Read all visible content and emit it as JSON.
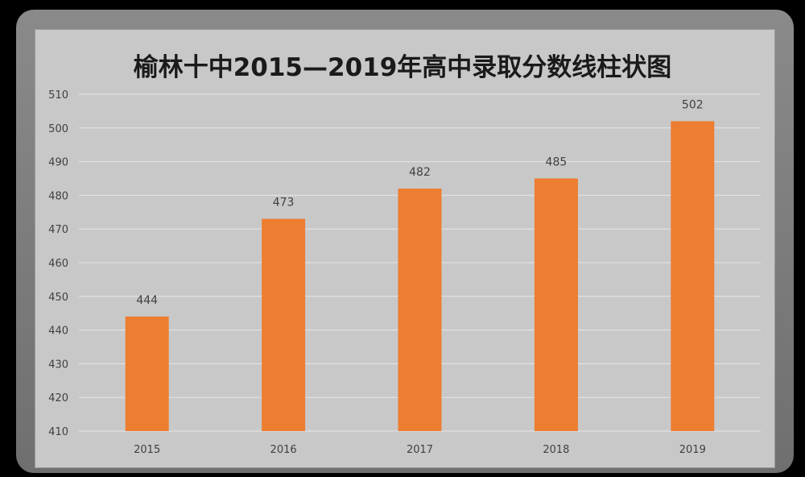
{
  "chart_data": {
    "type": "bar",
    "title": "榆林十中2015—2019年高中录取分数线柱状图",
    "categories": [
      "2015",
      "2016",
      "2017",
      "2018",
      "2019"
    ],
    "values": [
      444,
      473,
      482,
      485,
      502
    ],
    "data_labels": [
      "444",
      "473",
      "482",
      "485",
      "502"
    ],
    "ylim": [
      410,
      510
    ],
    "yticks": [
      "410",
      "420",
      "430",
      "440",
      "450",
      "460",
      "470",
      "480",
      "490",
      "500",
      "510"
    ],
    "grid": true,
    "legend": "none",
    "colors": {
      "bar": "#ED7D31",
      "grid": "#e6e6e6",
      "tick_text": "#404040",
      "label_text": "#404040"
    }
  }
}
